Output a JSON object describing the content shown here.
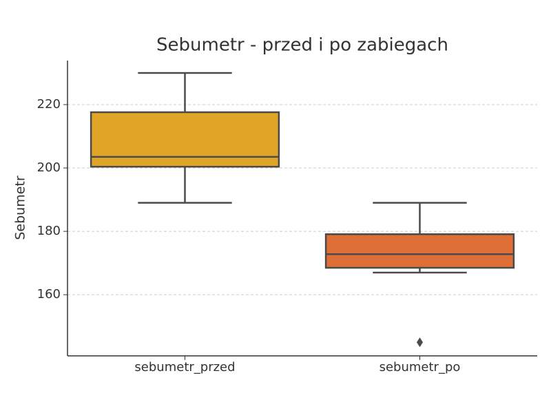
{
  "chart_data": {
    "type": "box",
    "title": "Sebumetr - przed i po zabiegach",
    "y_label": "Sebumetr",
    "categories": [
      "sebumetr_przed",
      "sebumetr_po"
    ],
    "boxes": [
      {
        "color": "#e0a526",
        "whisker_low": 189,
        "q1": 200.4,
        "median": 203.5,
        "q3": 217.6,
        "whisker_high": 230,
        "outliers": []
      },
      {
        "color": "#dd6e35",
        "whisker_low": 167,
        "q1": 168.5,
        "median": 172.8,
        "q3": 179.1,
        "whisker_high": 189,
        "outliers": [
          145
        ]
      }
    ],
    "ylim": [
      140.7,
      233.9
    ],
    "yticks": [
      160,
      180,
      200,
      220
    ],
    "grid": true
  }
}
